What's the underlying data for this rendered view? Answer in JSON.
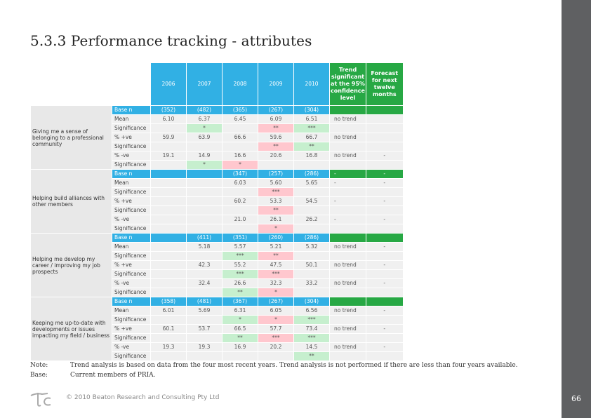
{
  "title": "5.3.3 Performance tracking - attributes",
  "page_number": "66",
  "footer": "© 2010 Beaton Research and Consulting Pty Ltd",
  "notes": [
    {
      "label": "Note:",
      "text": "Trend analysis is based on data from the four most recent years. Trend analysis is not performed if there are less than four years available."
    },
    {
      "label": "Base:",
      "text": "Current members of PRIA."
    }
  ],
  "table": {
    "years": [
      "2006",
      "2007",
      "2008",
      "2009",
      "2010"
    ],
    "trend_header": "Trend significant at the 95% confidence level",
    "forecast_header": "Forecast for next twelve months",
    "groups": [
      {
        "attribute": "Giving me a sense of belonging to a professional community",
        "rows": [
          {
            "type": "base",
            "label": "Base n",
            "vals": [
              "(352)",
              "(482)",
              "(365)",
              "(267)",
              "(304)"
            ],
            "trend": "",
            "fc": ""
          },
          {
            "label": "Mean",
            "vals": [
              "6.10",
              "6.37",
              "6.45",
              "6.09",
              "6.51"
            ],
            "trend": "no trend",
            "fc": ""
          },
          {
            "label": "Significance",
            "vals": [
              "",
              "*",
              "",
              "**",
              "***"
            ],
            "cls": [
              "",
              "pos",
              "",
              "neg",
              "pos"
            ],
            "trend": "",
            "fc": ""
          },
          {
            "label": "% +ve",
            "vals": [
              "59.9",
              "63.9",
              "66.6",
              "59.6",
              "66.7"
            ],
            "trend": "no trend",
            "fc": ""
          },
          {
            "label": "Significance",
            "vals": [
              "",
              "",
              "",
              "**",
              "**"
            ],
            "cls": [
              "",
              "",
              "",
              "neg",
              "pos"
            ],
            "trend": "",
            "fc": ""
          },
          {
            "label": "% -ve",
            "vals": [
              "19.1",
              "14.9",
              "16.6",
              "20.6",
              "16.8"
            ],
            "trend": "no trend",
            "fc": "-"
          },
          {
            "label": "Significance",
            "vals": [
              "",
              "*",
              "*",
              "",
              ""
            ],
            "cls": [
              "",
              "pos",
              "neg",
              "",
              ""
            ],
            "trend": "",
            "fc": ""
          }
        ]
      },
      {
        "attribute": "Helping build alliances with other members",
        "rows": [
          {
            "type": "base",
            "label": "Base n",
            "vals": [
              "",
              "",
              "(347)",
              "(257)",
              "(286)"
            ],
            "trend": "-",
            "fc": "-"
          },
          {
            "label": "Mean",
            "vals": [
              "",
              "",
              "6.03",
              "5.60",
              "5.65"
            ],
            "trend": "-",
            "fc": "-"
          },
          {
            "label": "Significance",
            "vals": [
              "",
              "",
              "",
              "***",
              ""
            ],
            "cls": [
              "",
              "",
              "",
              "neg",
              ""
            ],
            "trend": "",
            "fc": ""
          },
          {
            "label": "% +ve",
            "vals": [
              "",
              "",
              "60.2",
              "53.3",
              "54.5"
            ],
            "trend": "-",
            "fc": "-"
          },
          {
            "label": "Significance",
            "vals": [
              "",
              "",
              "",
              "**",
              ""
            ],
            "cls": [
              "",
              "",
              "",
              "neg",
              ""
            ],
            "trend": "",
            "fc": ""
          },
          {
            "label": "% -ve",
            "vals": [
              "",
              "",
              "21.0",
              "26.1",
              "26.2"
            ],
            "trend": "-",
            "fc": "-"
          },
          {
            "label": "Significance",
            "vals": [
              "",
              "",
              "",
              "*",
              ""
            ],
            "cls": [
              "",
              "",
              "",
              "neg",
              ""
            ],
            "trend": "",
            "fc": ""
          }
        ]
      },
      {
        "attribute": "Helping me develop my career / improving my job prospects",
        "rows": [
          {
            "type": "base",
            "label": "Base n",
            "vals": [
              "",
              "(411)",
              "(351)",
              "(260)",
              "(286)"
            ],
            "trend": "",
            "fc": ""
          },
          {
            "label": "Mean",
            "vals": [
              "",
              "5.18",
              "5.57",
              "5.21",
              "5.32"
            ],
            "trend": "no trend",
            "fc": "-"
          },
          {
            "label": "Significance",
            "vals": [
              "",
              "",
              "***",
              "**",
              ""
            ],
            "cls": [
              "",
              "",
              "pos",
              "neg",
              ""
            ],
            "trend": "",
            "fc": ""
          },
          {
            "label": "% +ve",
            "vals": [
              "",
              "42.3",
              "55.2",
              "47.5",
              "50.1"
            ],
            "trend": "no trend",
            "fc": "-"
          },
          {
            "label": "Significance",
            "vals": [
              "",
              "",
              "***",
              "***",
              ""
            ],
            "cls": [
              "",
              "",
              "pos",
              "neg",
              ""
            ],
            "trend": "",
            "fc": ""
          },
          {
            "label": "% -ve",
            "vals": [
              "",
              "32.4",
              "26.6",
              "32.3",
              "33.2"
            ],
            "trend": "no trend",
            "fc": "-"
          },
          {
            "label": "Significance",
            "vals": [
              "",
              "",
              "**",
              "*",
              ""
            ],
            "cls": [
              "",
              "",
              "pos",
              "neg",
              ""
            ],
            "trend": "",
            "fc": ""
          }
        ]
      },
      {
        "attribute": "Keeping me up-to-date with developments or issues impacting my field / business",
        "rows": [
          {
            "type": "base",
            "label": "Base n",
            "vals": [
              "(358)",
              "(481)",
              "(367)",
              "(267)",
              "(304)"
            ],
            "trend": "",
            "fc": ""
          },
          {
            "label": "Mean",
            "vals": [
              "6.01",
              "5.69",
              "6.31",
              "6.05",
              "6.56"
            ],
            "trend": "no trend",
            "fc": "-"
          },
          {
            "label": "Significance",
            "vals": [
              "",
              "",
              "*",
              "*",
              "***"
            ],
            "cls": [
              "",
              "",
              "pos",
              "neg",
              "pos"
            ],
            "trend": "",
            "fc": ""
          },
          {
            "label": "% +ve",
            "vals": [
              "60.1",
              "53.7",
              "66.5",
              "57.7",
              "73.4"
            ],
            "trend": "no trend",
            "fc": "-"
          },
          {
            "label": "Significance",
            "vals": [
              "",
              "",
              "**",
              "***",
              "***"
            ],
            "cls": [
              "",
              "",
              "pos",
              "neg",
              "pos"
            ],
            "trend": "",
            "fc": ""
          },
          {
            "label": "% -ve",
            "vals": [
              "19.3",
              "19.3",
              "16.9",
              "20.2",
              "14.5"
            ],
            "trend": "no trend",
            "fc": "-"
          },
          {
            "label": "Significance",
            "vals": [
              "",
              "",
              "",
              "",
              "**"
            ],
            "cls": [
              "",
              "",
              "",
              "",
              "pos"
            ],
            "trend": "",
            "fc": ""
          }
        ]
      }
    ]
  }
}
